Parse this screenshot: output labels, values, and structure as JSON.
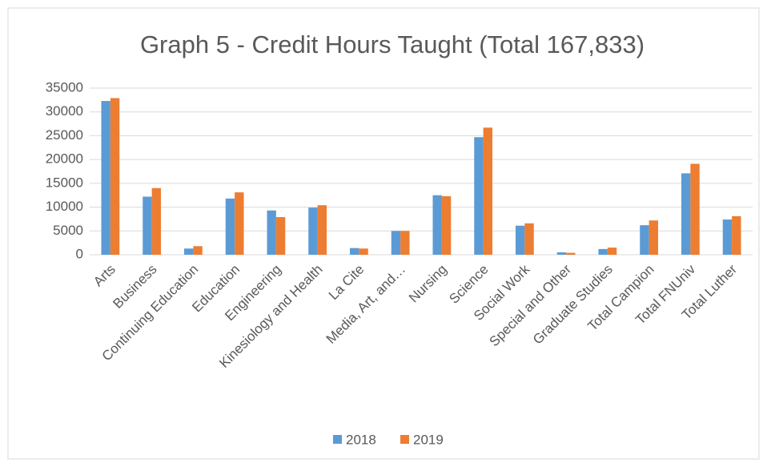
{
  "chart_data": {
    "type": "bar",
    "title": "Graph 5 - Credit Hours Taught (Total 167,833)",
    "categories": [
      "Arts",
      "Business",
      "Continuing Education",
      "Education",
      "Engineering",
      "Kinesiology and Health",
      "La Cite",
      "Media, Art, and…",
      "Nursing",
      "Science",
      "Social Work",
      "Special and Other",
      "Graduate Studies",
      "Total Campion",
      "Total FNUniv",
      "Total Luther"
    ],
    "series": [
      {
        "name": "2018",
        "color": "#5b9bd5",
        "values": [
          32300,
          12200,
          1300,
          11800,
          9300,
          9900,
          1400,
          5000,
          12500,
          24700,
          6100,
          500,
          1200,
          6200,
          17100,
          7400
        ]
      },
      {
        "name": "2019",
        "color": "#ed7d31",
        "values": [
          32900,
          14000,
          1800,
          13100,
          7900,
          10400,
          1300,
          5000,
          12300,
          26700,
          6600,
          400,
          1500,
          7200,
          19100,
          8100
        ]
      }
    ],
    "ylim": [
      0,
      35000
    ],
    "yticks": [
      0,
      5000,
      10000,
      15000,
      20000,
      25000,
      30000,
      35000
    ],
    "grid": true,
    "legend": "bottom"
  }
}
